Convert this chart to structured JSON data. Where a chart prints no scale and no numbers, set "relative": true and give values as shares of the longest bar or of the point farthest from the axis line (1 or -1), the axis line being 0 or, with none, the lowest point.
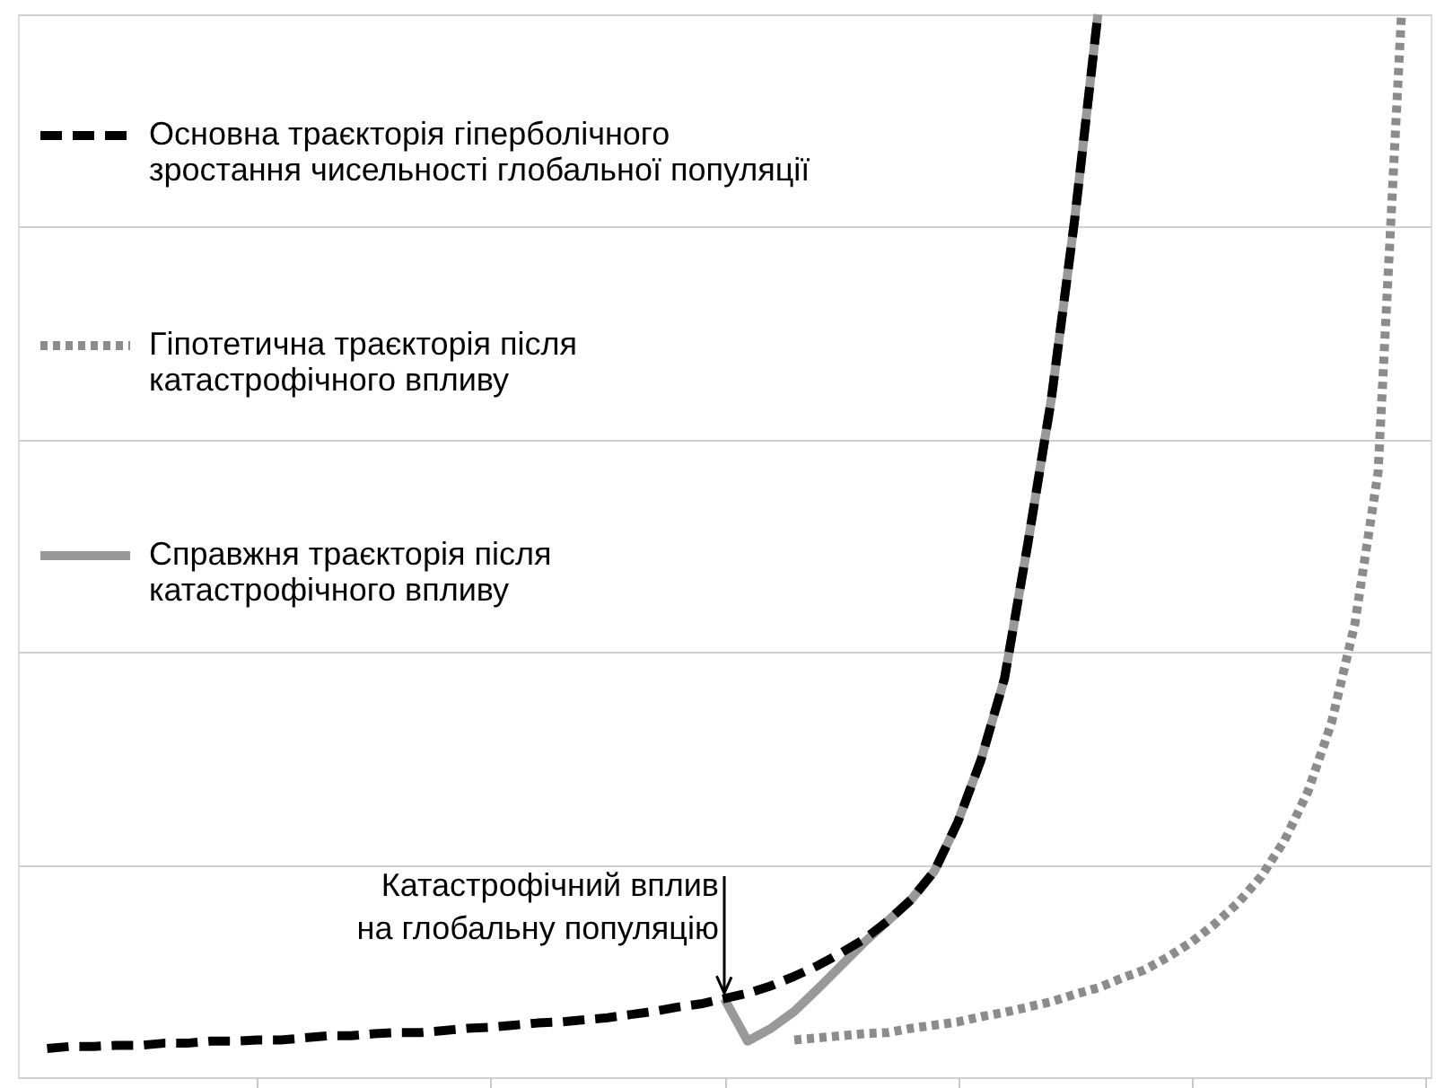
{
  "chart_data": {
    "type": "line",
    "relative": true,
    "grid": "y",
    "legend": "top left",
    "tick_labels": false,
    "categories": [
      null,
      null,
      null,
      null,
      null,
      null,
      null,
      null,
      null,
      null,
      null,
      null,
      null,
      null,
      null,
      null,
      null,
      null,
      null,
      null,
      null,
      null,
      null,
      null,
      null,
      null,
      null,
      null,
      null,
      null,
      null,
      null,
      null,
      null,
      null,
      null,
      null,
      null,
      null,
      null,
      null,
      null,
      null,
      null,
      null,
      null,
      null,
      null,
      null,
      null,
      null,
      null,
      null,
      null,
      null,
      null,
      null,
      null,
      null,
      null,
      null
    ],
    "series": [
      {
        "name": "Основна траєкторія гіперболічного зростання чисельності глобальної популяції",
        "color": "#000000",
        "line_style": "dashed",
        "values": [
          null,
          0.027,
          0.029,
          0.029,
          0.03,
          0.03,
          0.032,
          0.032,
          0.034,
          0.034,
          0.035,
          0.035,
          0.037,
          0.039,
          0.039,
          0.041,
          0.042,
          0.042,
          0.044,
          0.046,
          0.047,
          0.049,
          0.051,
          0.052,
          0.054,
          0.056,
          0.059,
          0.062,
          0.066,
          0.069,
          0.074,
          0.079,
          0.086,
          0.095,
          0.105,
          0.117,
          0.13,
          0.147,
          0.167,
          0.194,
          0.24,
          0.299,
          0.375,
          0.502,
          0.637,
          0.806,
          1.0,
          null,
          null,
          null,
          null,
          null,
          null,
          null,
          null,
          null,
          null,
          null,
          null,
          null,
          null
        ]
      },
      {
        "name": "Гіпотетична траєкторія після катастрофічного впливу",
        "color": "#8c8c8c",
        "line_style": "dotted",
        "values": [
          null,
          null,
          null,
          null,
          null,
          null,
          null,
          null,
          null,
          null,
          null,
          null,
          null,
          null,
          null,
          null,
          null,
          null,
          null,
          null,
          null,
          null,
          null,
          null,
          null,
          null,
          null,
          null,
          null,
          null,
          null,
          null,
          null,
          0.035,
          0.037,
          0.039,
          0.041,
          0.042,
          0.046,
          0.049,
          0.052,
          0.057,
          0.061,
          0.066,
          0.071,
          0.078,
          0.084,
          0.093,
          0.101,
          0.113,
          0.127,
          0.144,
          0.164,
          0.189,
          0.223,
          0.269,
          0.333,
          0.426,
          0.569,
          1.0,
          null
        ]
      },
      {
        "name": "Справжня траєкторія після катастрофічного впливу",
        "color": "#999999",
        "line_style": "solid",
        "values": [
          null,
          null,
          null,
          null,
          null,
          null,
          null,
          null,
          null,
          null,
          null,
          null,
          null,
          null,
          null,
          null,
          null,
          null,
          null,
          null,
          null,
          null,
          null,
          null,
          null,
          null,
          null,
          null,
          null,
          null,
          0.074,
          0.034,
          0.046,
          0.062,
          0.083,
          0.105,
          0.127,
          0.147,
          0.167,
          0.194,
          0.24,
          0.299,
          0.375,
          0.502,
          0.637,
          0.806,
          1.0,
          null,
          null,
          null,
          null,
          null,
          null,
          null,
          null,
          null,
          null,
          null,
          null,
          null,
          null
        ]
      }
    ],
    "annotations": [
      "Катастрофічний вплив на глобальну популяцію"
    ]
  }
}
